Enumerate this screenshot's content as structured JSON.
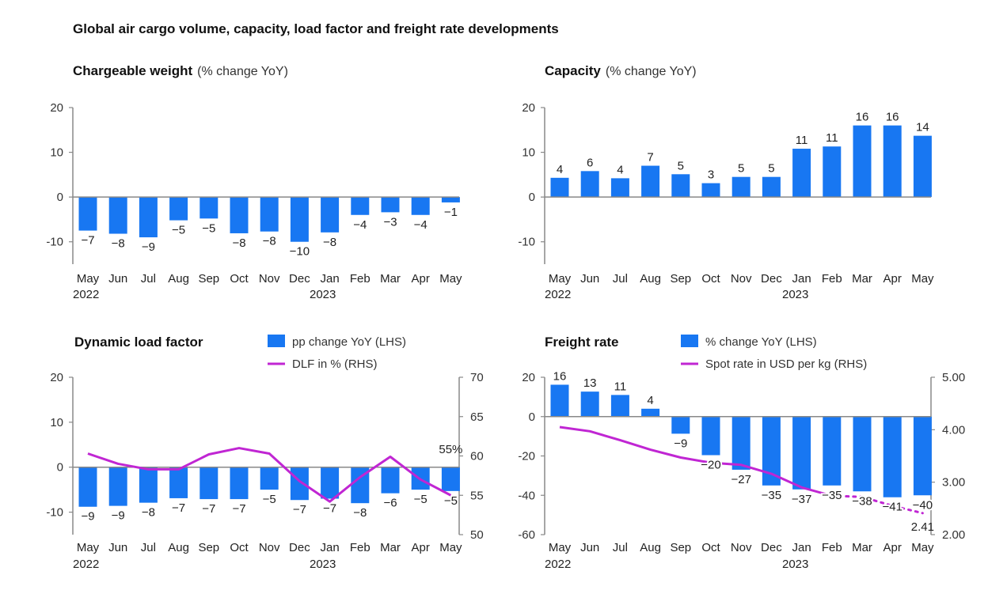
{
  "figure_title": "Global air cargo volume, capacity, load factor and freight rate developments",
  "colors": {
    "bar": "#1877f2",
    "line": "#c026d3",
    "axis": "#888888",
    "text": "#222222"
  },
  "chart_data": [
    {
      "id": "chargeable",
      "type": "bar",
      "title": "Chargeable weight",
      "subtitle": "(% change YoY)",
      "categories": [
        "May",
        "Jun",
        "Jul",
        "Aug",
        "Sep",
        "Oct",
        "Nov",
        "Dec",
        "Jan",
        "Feb",
        "Mar",
        "Apr",
        "May"
      ],
      "year_labels": [
        "2022",
        "2023"
      ],
      "values": [
        -7.5,
        -8.2,
        -9.0,
        -5.2,
        -4.8,
        -8.1,
        -7.7,
        -10.0,
        -7.9,
        -4.0,
        -3.4,
        -4.0,
        -1.2
      ],
      "value_labels": [
        "-7",
        "-8",
        "-9",
        "-5",
        "-5",
        "-8",
        "-8",
        "-10",
        "-8",
        "-4",
        "-3",
        "-4",
        "-1"
      ],
      "y_ticks": [
        "20",
        "10",
        "0",
        "-10"
      ],
      "ylim": [
        -15,
        20
      ]
    },
    {
      "id": "capacity",
      "type": "bar",
      "title": "Capacity",
      "subtitle": "(% change YoY)",
      "categories": [
        "May",
        "Jun",
        "Jul",
        "Aug",
        "Sep",
        "Oct",
        "Nov",
        "Dec",
        "Jan",
        "Feb",
        "Mar",
        "Apr",
        "May"
      ],
      "year_labels": [
        "2022",
        "2023"
      ],
      "values": [
        4.3,
        5.8,
        4.2,
        7.0,
        5.1,
        3.1,
        4.5,
        4.5,
        10.8,
        11.3,
        16.0,
        16.0,
        13.7
      ],
      "value_labels": [
        "4",
        "6",
        "4",
        "7",
        "5",
        "3",
        "5",
        "5",
        "11",
        "11",
        "16",
        "16",
        "14"
      ],
      "y_ticks": [
        "20",
        "10",
        "0",
        "-10"
      ],
      "ylim": [
        -15,
        20
      ]
    },
    {
      "id": "dlf",
      "type": "bar+line",
      "title": "Dynamic load factor",
      "legend": [
        "pp change YoY (LHS)",
        "DLF in % (RHS)"
      ],
      "categories": [
        "May",
        "Jun",
        "Jul",
        "Aug",
        "Sep",
        "Oct",
        "Nov",
        "Dec",
        "Jan",
        "Feb",
        "Mar",
        "Apr",
        "May"
      ],
      "year_labels": [
        "2022",
        "2023"
      ],
      "values": [
        -8.8,
        -8.6,
        -7.9,
        -6.9,
        -7.1,
        -7.1,
        -5.0,
        -7.3,
        -7.0,
        -8.0,
        -5.8,
        -5.0,
        -5.3
      ],
      "value_labels": [
        "-9",
        "-9",
        "-8",
        "-7",
        "-7",
        "-7",
        "-5",
        "-7",
        "-7",
        "-8",
        "-6",
        "-5",
        "-5"
      ],
      "line_values": [
        60.3,
        59.0,
        58.3,
        58.3,
        60.2,
        61.0,
        60.3,
        56.8,
        54.2,
        57.3,
        59.9,
        57.0,
        55.0
      ],
      "line_end_label": "55%",
      "y_ticks": [
        "20",
        "10",
        "0",
        "-10"
      ],
      "ylim": [
        -15,
        20
      ],
      "y2_ticks": [
        "70",
        "65",
        "60",
        "55",
        "50"
      ],
      "y2lim": [
        50,
        70
      ]
    },
    {
      "id": "freight",
      "type": "bar+line",
      "title": "Freight rate",
      "legend": [
        "% change YoY (LHS)",
        "Spot rate in USD per kg (RHS)"
      ],
      "categories": [
        "May",
        "Jun",
        "Jul",
        "Aug",
        "Sep",
        "Oct",
        "Nov",
        "Dec",
        "Jan",
        "Feb",
        "Mar",
        "Apr",
        "May"
      ],
      "year_labels": [
        "2022",
        "2023"
      ],
      "values": [
        16.2,
        12.7,
        11.0,
        4.0,
        -8.7,
        -19.6,
        -27.0,
        -35.0,
        -37.0,
        -35.0,
        -38.0,
        -41.0,
        -40.0
      ],
      "value_labels": [
        "16",
        "13",
        "11",
        "4",
        "-9",
        "-20",
        "-27",
        "-35",
        "-37",
        "-35",
        "-38",
        "-41",
        "-40"
      ],
      "line_values": [
        4.05,
        3.97,
        3.8,
        3.62,
        3.47,
        3.37,
        3.33,
        3.16,
        2.9,
        2.74,
        2.72,
        2.55,
        2.41
      ],
      "line_end_label": "2.41",
      "y_ticks": [
        "20",
        "0",
        "-20",
        "-40",
        "-60"
      ],
      "ylim": [
        -60,
        20
      ],
      "y2_ticks": [
        "5.00",
        "4.00",
        "3.00",
        "2.00"
      ],
      "y2lim": [
        2.0,
        5.0
      ]
    }
  ]
}
